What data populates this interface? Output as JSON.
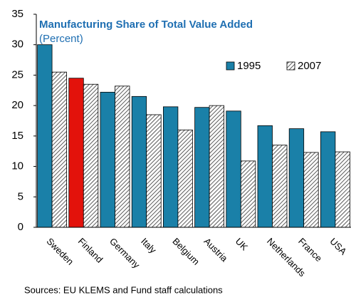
{
  "chart_data": {
    "type": "bar",
    "title": "Manufacturing Share of Total Value Added",
    "subtitle": "(Percent)",
    "categories": [
      "Sweden",
      "Finland",
      "Germany",
      "Italy",
      "Belgium",
      "Austria",
      "UK",
      "Netherlands",
      "France",
      "USA"
    ],
    "series": [
      {
        "name": "1995",
        "color": "#1a80a8",
        "colors": [
          "#1a80a8",
          "#e3120b",
          "#1a80a8",
          "#1a80a8",
          "#1a80a8",
          "#1a80a8",
          "#1a80a8",
          "#1a80a8",
          "#1a80a8",
          "#1a80a8"
        ],
        "values": [
          30.0,
          24.5,
          22.2,
          21.5,
          19.8,
          19.7,
          19.1,
          16.7,
          16.2,
          15.7
        ]
      },
      {
        "name": "2007",
        "color": "#333333",
        "pattern": "hatch",
        "values": [
          25.5,
          23.5,
          23.2,
          18.5,
          16.0,
          20.0,
          10.9,
          13.5,
          12.3,
          12.4
        ]
      }
    ],
    "ylim": [
      0,
      35
    ],
    "yticks": [
      0,
      5,
      10,
      15,
      20,
      25,
      30,
      35
    ],
    "grid": false,
    "legend": "upper right",
    "source": "Sources: EU KLEMS and Fund staff calculations"
  }
}
